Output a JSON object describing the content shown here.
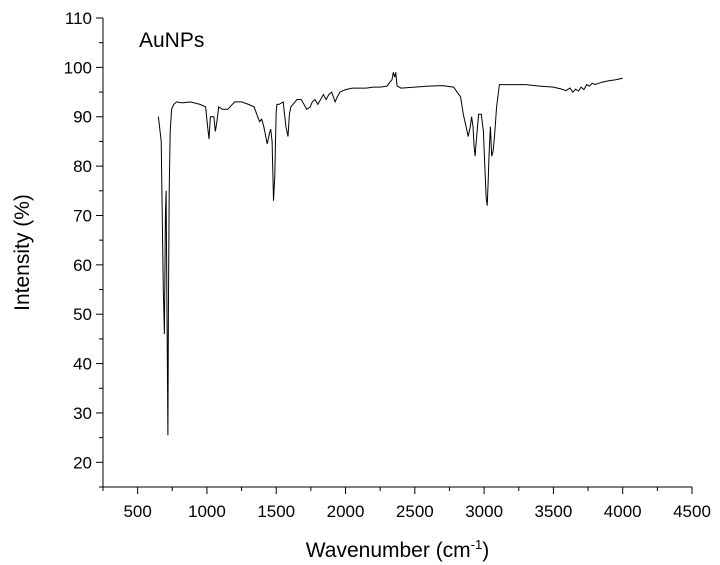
{
  "chart_data": {
    "type": "line",
    "annotation": "AuNPs",
    "xlabel": "Wavenumber (cm",
    "xlabel_sup": "-1",
    "xlabel_end": ")",
    "ylabel": "Intensity (%)",
    "xlim": [
      250,
      4500
    ],
    "ylim": [
      15,
      110
    ],
    "x_ticks": [
      500,
      1000,
      1500,
      2000,
      2500,
      3000,
      3500,
      4000,
      4500
    ],
    "y_ticks": [
      20,
      30,
      40,
      50,
      60,
      70,
      80,
      90,
      100,
      110
    ],
    "grid": false,
    "series": [
      {
        "color": "#000000",
        "x": [
          650,
          670,
          685,
          693,
          700,
          705,
          712,
          718,
          722,
          728,
          735,
          745,
          760,
          780,
          820,
          880,
          950,
          990,
          1005,
          1015,
          1025,
          1050,
          1060,
          1072,
          1085,
          1110,
          1150,
          1200,
          1250,
          1300,
          1340,
          1360,
          1380,
          1395,
          1410,
          1435,
          1450,
          1460,
          1470,
          1480,
          1490,
          1495,
          1500,
          1505,
          1520,
          1550,
          1570,
          1585,
          1595,
          1605,
          1620,
          1650,
          1680,
          1700,
          1720,
          1745,
          1760,
          1780,
          1800,
          1820,
          1840,
          1860,
          1880,
          1900,
          1925,
          1940,
          1960,
          2000,
          2050,
          2100,
          2150,
          2200,
          2250,
          2300,
          2320,
          2335,
          2345,
          2355,
          2362,
          2372,
          2400,
          2500,
          2600,
          2700,
          2780,
          2830,
          2850,
          2870,
          2885,
          2900,
          2910,
          2920,
          2928,
          2935,
          2940,
          2960,
          2980,
          2995,
          3005,
          3015,
          3022,
          3028,
          3035,
          3045,
          3055,
          3065,
          3075,
          3090,
          3110,
          3150,
          3200,
          3300,
          3400,
          3500,
          3560,
          3590,
          3620,
          3640,
          3660,
          3680,
          3700,
          3720,
          3740,
          3760,
          3780,
          3800,
          3850,
          3900,
          3950,
          4000
        ],
        "values": [
          90,
          85,
          55,
          46,
          70,
          75,
          50,
          25.5,
          50,
          75,
          87,
          91.5,
          92.5,
          93,
          92.8,
          93,
          92.5,
          92,
          88,
          85.5,
          90,
          90,
          87,
          89,
          92,
          91.5,
          91.5,
          93,
          93,
          92.5,
          92,
          90.5,
          89,
          89.5,
          88,
          84.5,
          86.5,
          87.5,
          85,
          73,
          78,
          85,
          91,
          92.5,
          92.5,
          93,
          88,
          86,
          90.5,
          92,
          92.5,
          93.5,
          93.5,
          92.5,
          91.5,
          92,
          93,
          93.5,
          92.5,
          93.5,
          94.5,
          93.5,
          94.5,
          95,
          93,
          94,
          95,
          95.5,
          95.8,
          95.8,
          95.8,
          96,
          96,
          96.2,
          97,
          97.5,
          99,
          98,
          99,
          96.2,
          95.8,
          96,
          96.2,
          96.3,
          96,
          94,
          90.5,
          88,
          86,
          88,
          90,
          88,
          84,
          82,
          84,
          90.5,
          90.5,
          87,
          80,
          73.5,
          72,
          76,
          82,
          88,
          82,
          83,
          86,
          92,
          96.5,
          96.5,
          96.5,
          96.5,
          96.2,
          96,
          95.6,
          95.3,
          95.8,
          95,
          95.6,
          95.2,
          96,
          95.5,
          96.5,
          96.2,
          96.8,
          96.5,
          97,
          97.3,
          97.5,
          97.8
        ]
      }
    ]
  }
}
